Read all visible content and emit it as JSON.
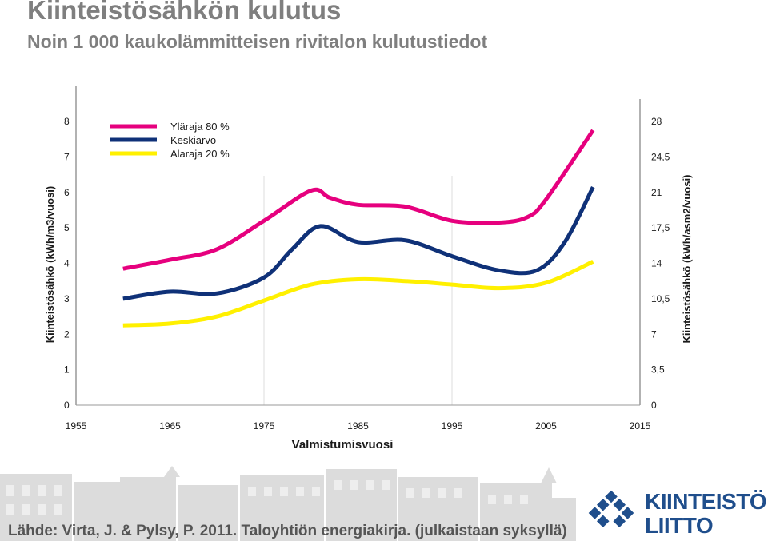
{
  "page": {
    "title": "Kiinteistösähkön kulutus",
    "subtitle": "Noin 1 000 kaukolämmitteisen rivitalon kulutustiedot",
    "source": "Lähde: Virta, J. & Pylsy, P. 2011. Taloyhtiön energiakirja. (julkaistaan syksyllä)",
    "logo": {
      "line1": "KIINTEISTÖ",
      "line2": "LIITTO",
      "icon": "diamond-grid-logo-icon",
      "color": "#1f4e8c"
    }
  },
  "chart_data": {
    "type": "line",
    "xlabel": "Valmistumisvuosi",
    "ylabel": "Kiinteistösähkö (kWh/m3/vuosi)",
    "y2label": "Kiinteistösähkö (kWh/asm2/vuosi)",
    "xlim": [
      1955,
      2015
    ],
    "ylim": [
      0,
      8
    ],
    "y2lim": [
      0,
      28
    ],
    "xticks": [
      "1955",
      "1965",
      "1975",
      "1985",
      "1995",
      "2005",
      "2015"
    ],
    "yticks": [
      "0",
      "1",
      "2",
      "3",
      "4",
      "5",
      "6",
      "7",
      "8"
    ],
    "y2ticks": [
      "0",
      "3,5",
      "7",
      "10,5",
      "14",
      "17,5",
      "21",
      "24,5",
      "28"
    ],
    "legend_position": "top-left",
    "series": [
      {
        "name": "Yläraja 80 %",
        "color": "#e6007e",
        "x": [
          1960,
          1965,
          1970,
          1975,
          1980,
          1982,
          1985,
          1990,
          1995,
          2000,
          2003,
          2005,
          2010
        ],
        "y": [
          3.85,
          4.1,
          4.4,
          5.2,
          6.05,
          5.85,
          5.65,
          5.6,
          5.2,
          5.15,
          5.3,
          5.8,
          7.75
        ]
      },
      {
        "name": "Keskiarvo",
        "color": "#0f3178",
        "x": [
          1960,
          1965,
          1970,
          1975,
          1978,
          1981,
          1985,
          1990,
          1995,
          2000,
          2004,
          2007,
          2010
        ],
        "y": [
          3.0,
          3.2,
          3.15,
          3.6,
          4.4,
          5.05,
          4.6,
          4.65,
          4.2,
          3.8,
          3.8,
          4.6,
          6.15
        ]
      },
      {
        "name": "Alaraja 20 %",
        "color": "#fff000",
        "x": [
          1960,
          1965,
          1970,
          1975,
          1980,
          1985,
          1990,
          1995,
          2000,
          2005,
          2010
        ],
        "y": [
          2.25,
          2.3,
          2.5,
          2.95,
          3.4,
          3.55,
          3.5,
          3.4,
          3.3,
          3.45,
          4.05
        ]
      }
    ]
  }
}
